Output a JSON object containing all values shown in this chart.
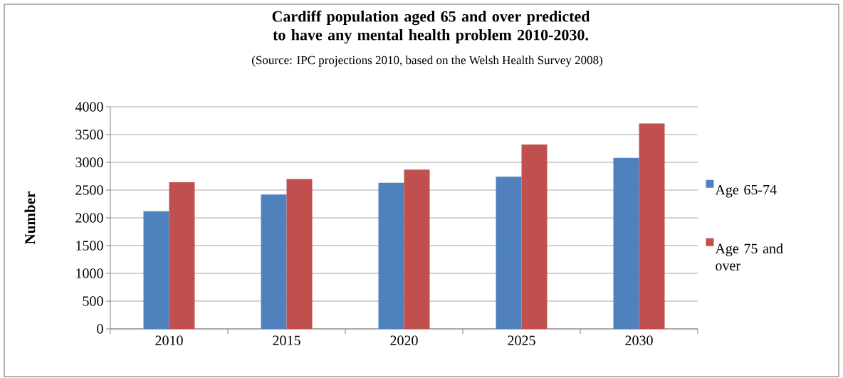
{
  "chart_data": {
    "type": "bar",
    "title": "Cardiff population aged 65 and over predicted to have any mental health problem 2010-2030.",
    "subtitle": "(Source: IPC projections 2010, based on the Welsh Health Survey 2008)",
    "ylabel": "Number",
    "categories": [
      "2010",
      "2015",
      "2020",
      "2025",
      "2030"
    ],
    "series": [
      {
        "name": "Age 65-74",
        "color": "#4f81bd",
        "values": [
          2120,
          2420,
          2630,
          2740,
          3080
        ]
      },
      {
        "name": "Age 75 and over",
        "color": "#c0504d",
        "values": [
          2640,
          2700,
          2870,
          3320,
          3700
        ]
      }
    ],
    "ylim": [
      0,
      4000
    ],
    "yticks": [
      0,
      500,
      1000,
      1500,
      2000,
      2500,
      3000,
      3500,
      4000
    ],
    "grid": "y",
    "legend": "right"
  }
}
